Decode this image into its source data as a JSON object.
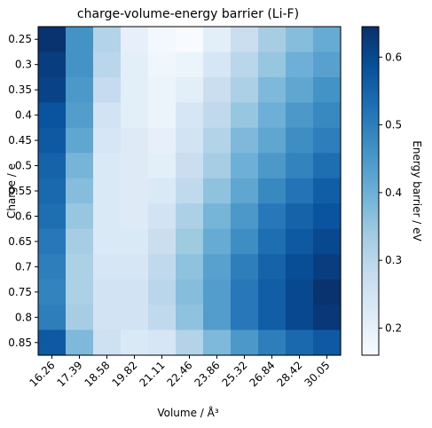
{
  "chart_data": {
    "type": "heatmap",
    "title": "charge-volume-energy barrier (Li-F)",
    "xlabel": "Volume / Å³",
    "ylabel": "Charge / e",
    "colorbar_label": "Energy barrier / eV",
    "colormap": "Blues",
    "x_categories": [
      "16.26",
      "17.39",
      "18.58",
      "19.82",
      "21.11",
      "22.46",
      "23.86",
      "25.32",
      "26.84",
      "28.42",
      "30.05"
    ],
    "y_categories": [
      "0.25",
      "0.3",
      "0.35",
      "0.4",
      "0.45",
      "0.5",
      "0.55",
      "0.6",
      "0.65",
      "0.7",
      "0.75",
      "0.8",
      "0.85"
    ],
    "colorbar_range": [
      0.16,
      0.645
    ],
    "colorbar_ticks": [
      "0.2",
      "0.3",
      "0.4",
      "0.5",
      "0.6"
    ],
    "values": [
      [
        0.64,
        0.46,
        0.31,
        0.2,
        0.17,
        0.16,
        0.21,
        0.27,
        0.33,
        0.37,
        0.41
      ],
      [
        0.62,
        0.46,
        0.3,
        0.21,
        0.18,
        0.19,
        0.24,
        0.3,
        0.35,
        0.4,
        0.43
      ],
      [
        0.61,
        0.45,
        0.28,
        0.21,
        0.19,
        0.21,
        0.27,
        0.32,
        0.38,
        0.42,
        0.46
      ],
      [
        0.58,
        0.44,
        0.25,
        0.21,
        0.19,
        0.24,
        0.29,
        0.35,
        0.4,
        0.45,
        0.48
      ],
      [
        0.57,
        0.42,
        0.24,
        0.22,
        0.2,
        0.25,
        0.31,
        0.38,
        0.42,
        0.47,
        0.5
      ],
      [
        0.55,
        0.39,
        0.23,
        0.22,
        0.21,
        0.27,
        0.33,
        0.4,
        0.45,
        0.49,
        0.53
      ],
      [
        0.54,
        0.37,
        0.23,
        0.22,
        0.23,
        0.29,
        0.36,
        0.42,
        0.48,
        0.52,
        0.56
      ],
      [
        0.53,
        0.35,
        0.23,
        0.22,
        0.25,
        0.32,
        0.39,
        0.45,
        0.51,
        0.55,
        0.58
      ],
      [
        0.51,
        0.33,
        0.23,
        0.23,
        0.27,
        0.34,
        0.41,
        0.47,
        0.53,
        0.57,
        0.6
      ],
      [
        0.5,
        0.32,
        0.24,
        0.24,
        0.29,
        0.36,
        0.43,
        0.5,
        0.55,
        0.59,
        0.62
      ],
      [
        0.49,
        0.32,
        0.25,
        0.25,
        0.3,
        0.37,
        0.44,
        0.51,
        0.56,
        0.6,
        0.64
      ],
      [
        0.5,
        0.33,
        0.25,
        0.25,
        0.29,
        0.36,
        0.44,
        0.51,
        0.56,
        0.6,
        0.63
      ],
      [
        0.57,
        0.38,
        0.26,
        0.23,
        0.24,
        0.31,
        0.38,
        0.45,
        0.5,
        0.54,
        0.57
      ]
    ]
  }
}
